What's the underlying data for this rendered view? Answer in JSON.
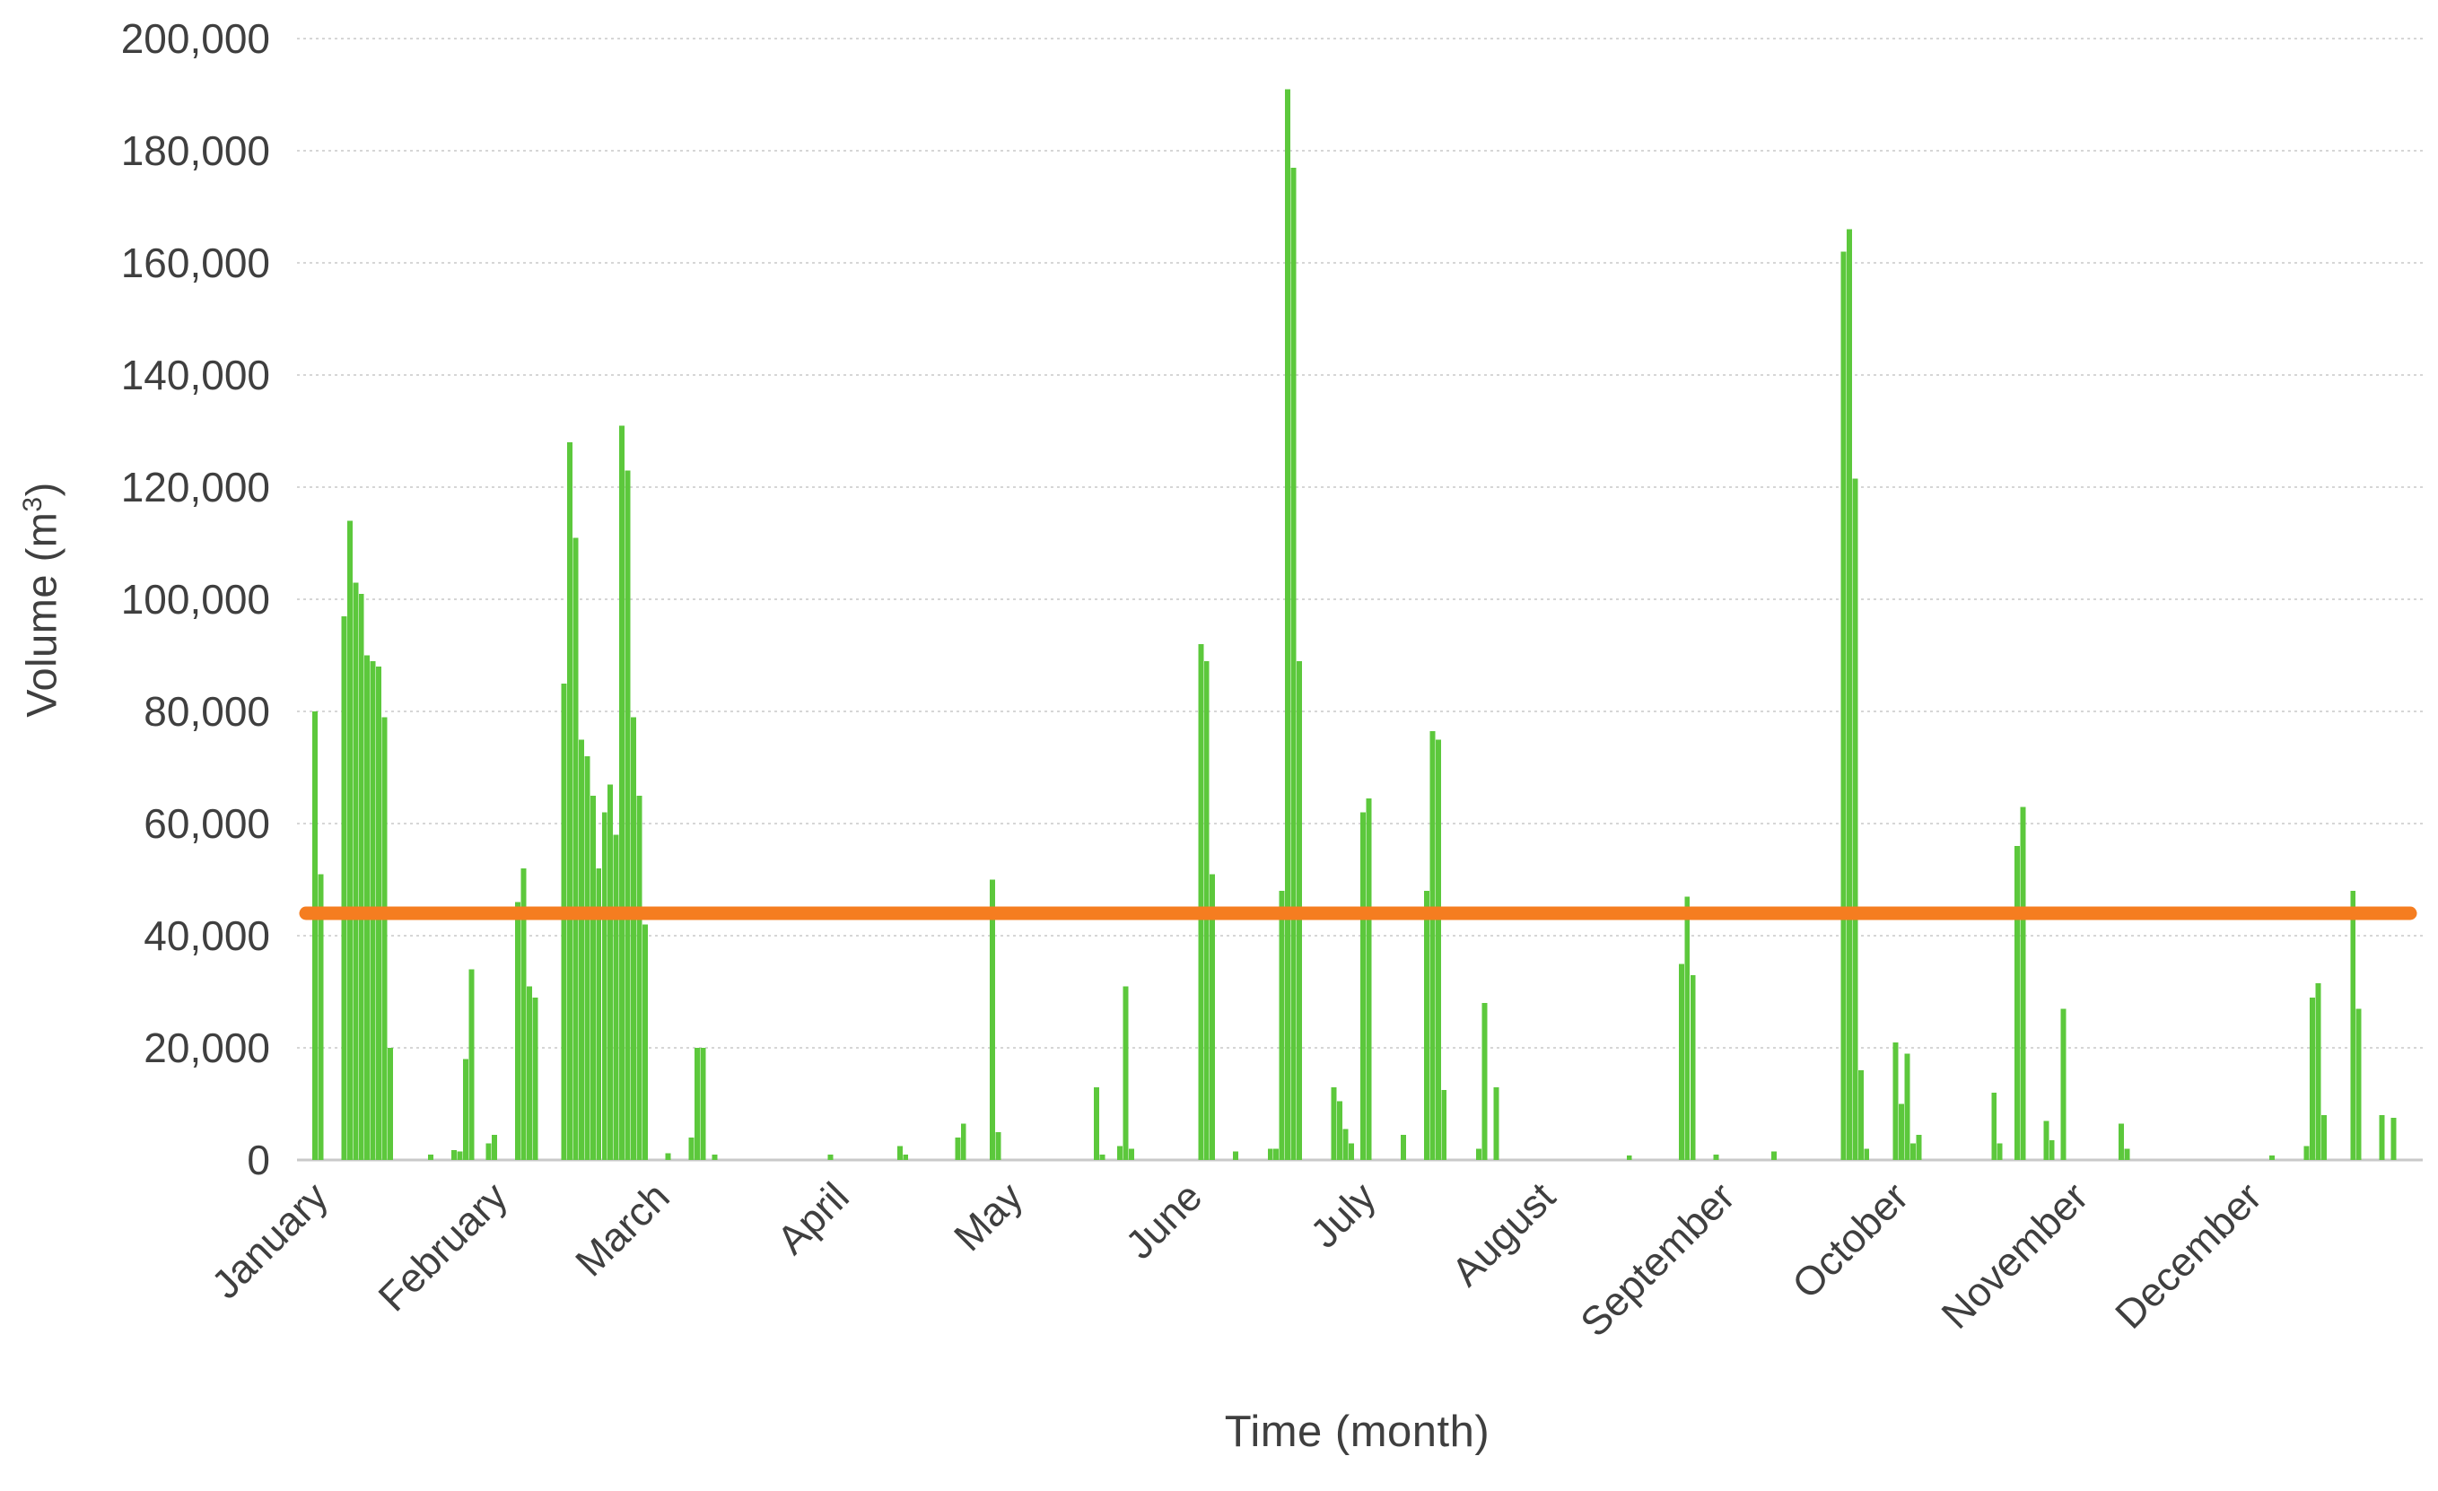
{
  "chart_data": {
    "type": "bar",
    "title": "",
    "xlabel": "Time (month)",
    "ylabel": "Volume (m³)",
    "ylabel_prefix": "Volume (m",
    "ylabel_sup": "3",
    "ylabel_suffix": ")",
    "x_categories": [
      "January",
      "February",
      "March",
      "April",
      "May",
      "June",
      "July",
      "August",
      "September",
      "October",
      "November",
      "December"
    ],
    "month_start_days": [
      1,
      32,
      60,
      91,
      121,
      152,
      182,
      213,
      244,
      274,
      305,
      335
    ],
    "days_in_year": 365,
    "ylim": [
      0,
      200000
    ],
    "ytick_step": 20000,
    "ytick_labels": [
      "0",
      "20,000",
      "40,000",
      "60,000",
      "80,000",
      "100,000",
      "120,000",
      "140,000",
      "160,000",
      "180,000",
      "200,000"
    ],
    "grid": true,
    "legend": false,
    "series": [
      {
        "name": "daily_volume",
        "type": "bar",
        "color": "#5CC83C",
        "default_value": 0,
        "daily_values": {
          "3": 80000,
          "4": 51000,
          "8": 97000,
          "9": 114000,
          "10": 103000,
          "11": 101000,
          "12": 90000,
          "13": 89000,
          "14": 88000,
          "15": 79000,
          "16": 20000,
          "23": 1000,
          "27": 1800,
          "28": 1500,
          "29": 18000,
          "30": 34000,
          "33": 3000,
          "34": 4500,
          "38": 46000,
          "39": 52000,
          "40": 31000,
          "41": 29000,
          "46": 85000,
          "47": 128000,
          "48": 111000,
          "49": 75000,
          "50": 72000,
          "51": 65000,
          "52": 52000,
          "53": 62000,
          "54": 67000,
          "55": 58000,
          "56": 131000,
          "57": 123000,
          "58": 79000,
          "59": 65000,
          "60": 42000,
          "64": 1200,
          "68": 4000,
          "69": 20000,
          "70": 20000,
          "72": 1000,
          "92": 1000,
          "104": 2500,
          "105": 1000,
          "114": 4000,
          "115": 6500,
          "120": 50000,
          "121": 5000,
          "138": 13000,
          "139": 1000,
          "142": 2500,
          "143": 31000,
          "144": 2000,
          "156": 92000,
          "157": 89000,
          "158": 51000,
          "162": 1500,
          "168": 2000,
          "169": 2000,
          "170": 48000,
          "171": 191000,
          "172": 177000,
          "173": 89000,
          "179": 13000,
          "180": 10500,
          "181": 5500,
          "182": 3000,
          "184": 62000,
          "185": 64500,
          "191": 4500,
          "195": 48000,
          "196": 76500,
          "197": 75000,
          "198": 12500,
          "204": 2000,
          "205": 28000,
          "207": 13000,
          "230": 800,
          "239": 35000,
          "240": 47000,
          "241": 33000,
          "245": 1000,
          "255": 1500,
          "267": 162000,
          "268": 166000,
          "269": 121500,
          "270": 16000,
          "271": 2000,
          "276": 21000,
          "277": 10000,
          "278": 19000,
          "279": 3000,
          "280": 4500,
          "293": 12000,
          "294": 3000,
          "297": 56000,
          "298": 63000,
          "302": 7000,
          "303": 3500,
          "305": 27000,
          "315": 6500,
          "316": 2000,
          "341": 800,
          "347": 2500,
          "348": 29000,
          "349": 31500,
          "350": 8000,
          "355": 48000,
          "356": 27000,
          "360": 8000,
          "362": 7500
        }
      },
      {
        "name": "reference_line",
        "type": "line",
        "color": "#F57D20",
        "value": 44000
      }
    ]
  },
  "colors": {
    "bar_green": "#5CC83C",
    "reference_orange": "#F57D20",
    "gridline": "#D6D6D6",
    "axis_line": "#C9C9C9",
    "text": "#3f3f3f"
  }
}
